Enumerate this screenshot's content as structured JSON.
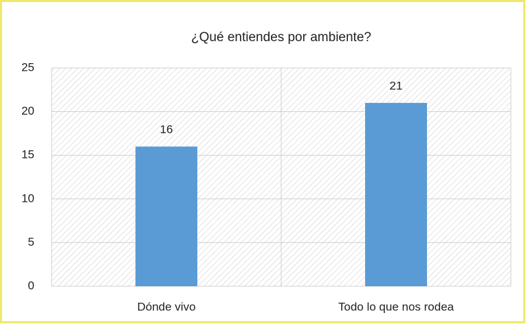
{
  "chart_data": {
    "type": "bar",
    "title": "¿Qué entiendes por ambiente?",
    "categories": [
      "Dónde vivo",
      "Todo lo que nos rodea"
    ],
    "values": [
      16,
      21
    ],
    "color": "#5b9bd5",
    "ylim": [
      0,
      25
    ],
    "yticks": [
      0,
      5,
      10,
      15,
      20,
      25
    ],
    "grid": true
  }
}
